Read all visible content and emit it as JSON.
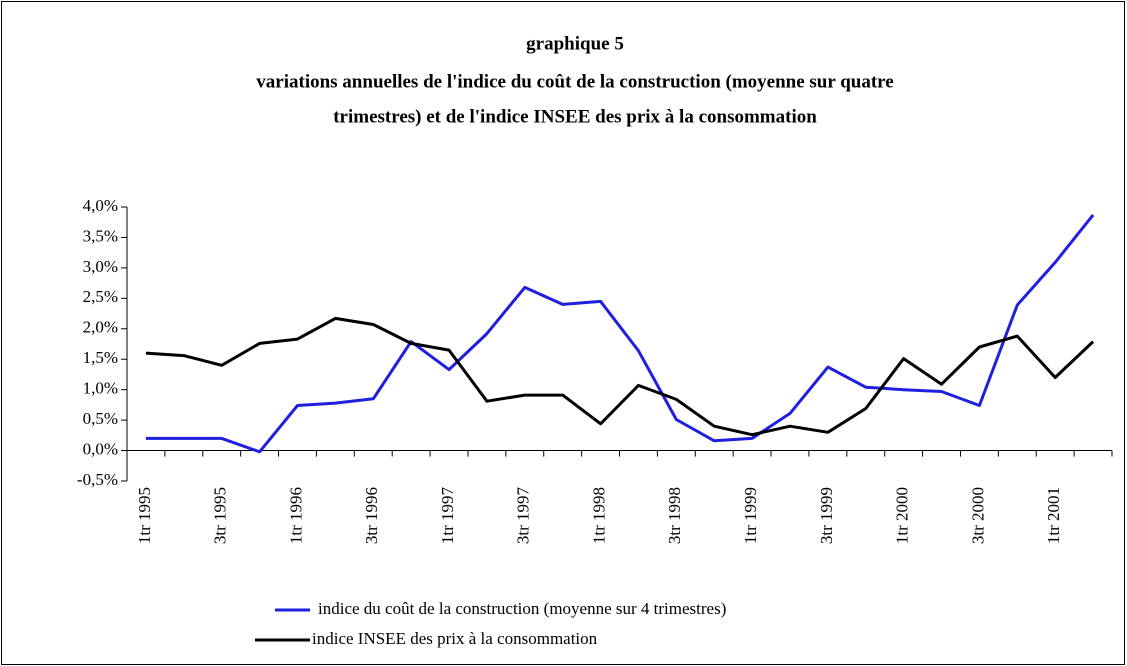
{
  "chart_data": {
    "type": "line",
    "title": [
      "graphique 5",
      "variations annuelles de l'indice du coût de la construction (moyenne sur quatre",
      "trimestres) et de l'indice INSEE des prix à la consommation"
    ],
    "categories": [
      "1tr 1995",
      null,
      "3tr 1995",
      null,
      "1tr 1996",
      null,
      "3tr 1996",
      null,
      "1tr 1997",
      null,
      "3tr 1997",
      null,
      "1tr 1998",
      null,
      "3tr 1998",
      null,
      "1tr 1999",
      null,
      "3tr 1999",
      null,
      "1tr 2000",
      null,
      "3tr 2000",
      null,
      "1tr 2001",
      null
    ],
    "series": [
      {
        "name": "indice du coût de la construction (moyenne sur 4 trimestres)",
        "color": "#1f1fe0",
        "values": [
          0.2,
          0.2,
          0.2,
          -0.02,
          0.74,
          0.78,
          0.85,
          1.79,
          1.33,
          1.92,
          2.68,
          2.4,
          2.45,
          1.64,
          0.51,
          0.16,
          0.2,
          0.61,
          1.37,
          1.04,
          1.0,
          0.97,
          0.74,
          2.39,
          3.09,
          3.87
        ]
      },
      {
        "name": "indice INSEE des prix à la consommation",
        "color": "#000000",
        "values": [
          1.6,
          1.56,
          1.4,
          1.76,
          1.83,
          2.17,
          2.07,
          1.76,
          1.65,
          0.81,
          0.91,
          0.91,
          0.44,
          1.07,
          0.84,
          0.4,
          0.26,
          0.4,
          0.3,
          0.69,
          1.51,
          1.09,
          1.7,
          1.88,
          1.2,
          1.79
        ]
      }
    ],
    "ylim": [
      -0.5,
      4.0
    ],
    "yticks": [
      {
        "value": -0.5,
        "label": "-0,5%"
      },
      {
        "value": 0,
        "label": "0,0%"
      },
      {
        "value": 0.5,
        "label": "0,5%"
      },
      {
        "value": 1,
        "label": "1,0%"
      },
      {
        "value": 1.5,
        "label": "1,5%"
      },
      {
        "value": 2,
        "label": "2,0%"
      },
      {
        "value": 2.5,
        "label": "2,5%"
      },
      {
        "value": 3,
        "label": "3,0%"
      },
      {
        "value": 3.5,
        "label": "3,5%"
      },
      {
        "value": 4,
        "label": "4,0%"
      }
    ],
    "legend": "bottom"
  }
}
